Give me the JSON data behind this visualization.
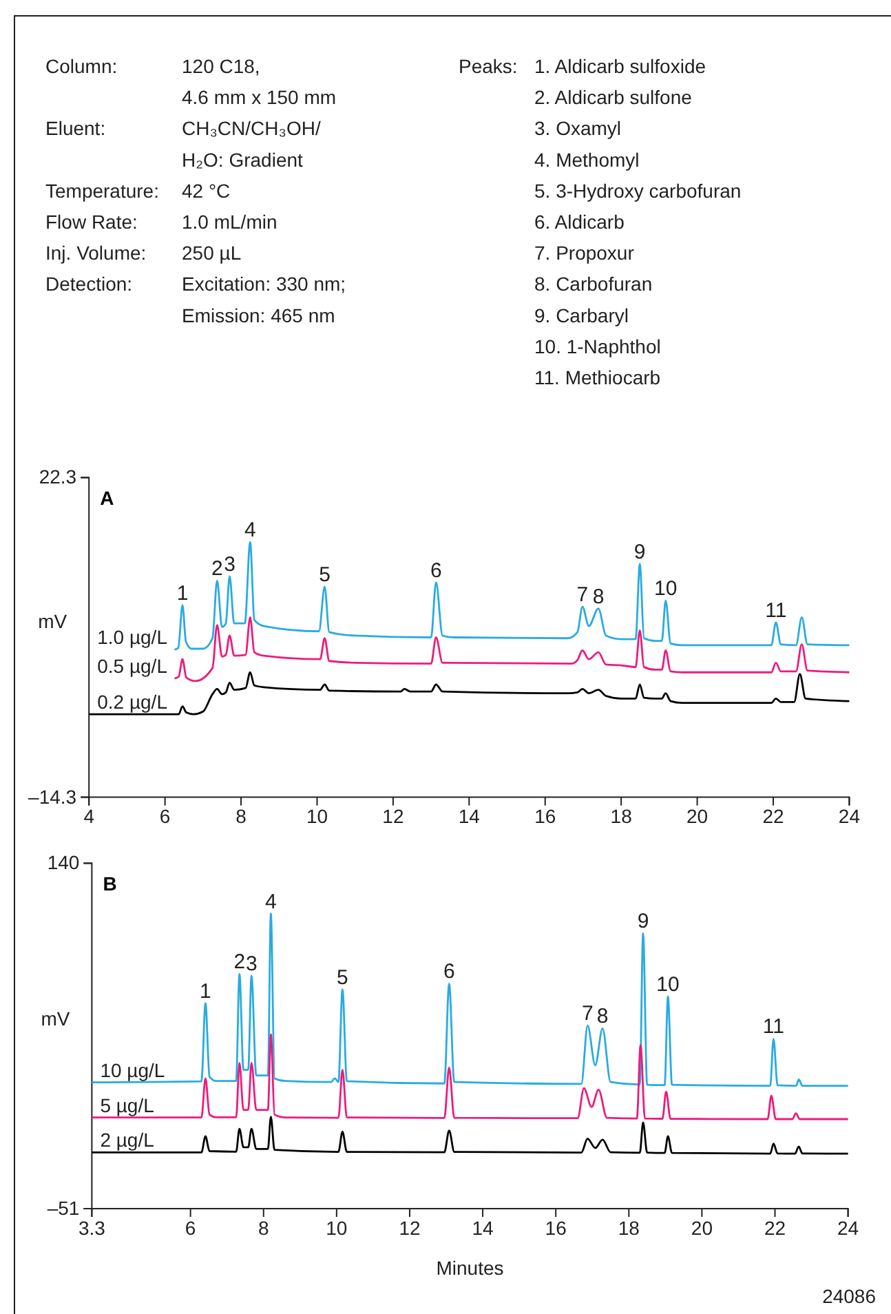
{
  "chart_data": [
    {
      "type": "other",
      "annotations": [
        "Column:\t120 C18,",
        "\t4.6 mm x 150 mm",
        "Eluent:\tCH₃CN/CH₃OH/",
        "\tH₂O: Gradient",
        "Temperature:\t42 °C",
        "Flow Rate:\t1.0 mL/min",
        "Inj. Volume:\t250 µL",
        "Detection:\tExcitation: 330 nm;",
        "\tEmission: 465 nm",
        "Peaks:\t\t1. Aldicarb sulfoxide",
        "\t\t2. Aldicarb sulfone",
        "\t\t3. Oxamyl",
        "\t\t4. Methomyl",
        "\t\t5. 3-Hydroxy carbofuran",
        "\t\t6. Aldicarb",
        "\t\t7. Propoxur",
        "\t\t8. Carbofuran",
        "\t\t9. Carbaryl",
        "\t\t10. 1-Naphthol",
        "\t\t11. Methiocarb"
      ]
    },
    {
      "type": "line",
      "title": "A",
      "ylabel": "mV",
      "xlim": [
        4,
        24
      ],
      "xticks": [
        4,
        6,
        8,
        10,
        12,
        14,
        16,
        18,
        20,
        22,
        24
      ],
      "ylim": [
        -14.3,
        22.3
      ],
      "yticks": [
        {
          "value": -14.3,
          "label": "–14.3"
        },
        22.3
      ],
      "series": [
        {
          "name": "1.0 µg/L",
          "color": "#29abe2",
          "x": [
            6.25,
            6.35,
            6.46,
            6.55,
            6.7,
            7.0,
            7.25,
            7.37,
            7.5,
            7.6,
            7.7,
            7.82,
            8.1,
            8.24,
            8.35,
            8.6,
            10.05,
            10.2,
            10.32,
            11,
            13.0,
            13.13,
            13.3,
            13.6,
            16.6,
            16.85,
            16.98,
            17.15,
            17.4,
            17.6,
            18.0,
            18.38,
            18.49,
            18.6,
            18.9,
            19.07,
            19.17,
            19.3,
            19.6,
            21.95,
            22.07,
            22.2,
            22.6,
            22.75,
            22.9,
            24
          ],
          "values": [
            2.6,
            2.8,
            7.7,
            3.5,
            2.7,
            2.7,
            3.9,
            10.5,
            5.2,
            5.6,
            11.0,
            5.6,
            5.6,
            14.9,
            6.0,
            5.3,
            4.7,
            9.8,
            4.6,
            4.2,
            4.0,
            10.3,
            4.2,
            4.0,
            3.9,
            4.6,
            7.5,
            5.3,
            7.3,
            4.2,
            3.8,
            3.8,
            12.4,
            3.9,
            3.6,
            3.6,
            8.2,
            3.3,
            3.1,
            3.1,
            5.7,
            3.2,
            3.1,
            6.3,
            3.2,
            3.1
          ]
        },
        {
          "name": "0.5 µg/L",
          "color": "#ec1c7c",
          "x": [
            6.25,
            6.36,
            6.46,
            6.56,
            6.8,
            7.25,
            7.37,
            7.5,
            7.6,
            7.7,
            7.82,
            8.12,
            8.24,
            8.35,
            8.6,
            10.08,
            10.2,
            10.32,
            11,
            13.0,
            13.13,
            13.3,
            16.7,
            16.85,
            16.98,
            17.15,
            17.4,
            17.6,
            18.0,
            18.38,
            18.49,
            18.6,
            18.9,
            19.07,
            19.17,
            19.3,
            19.6,
            21.95,
            22.07,
            22.2,
            22.6,
            22.75,
            22.9,
            24
          ],
          "values": [
            -0.7,
            -0.5,
            1.5,
            -0.6,
            -1.0,
            0.5,
            5.4,
            1.8,
            2.0,
            4.2,
            1.9,
            2.0,
            6.3,
            2.3,
            1.9,
            1.5,
            3.9,
            1.3,
            1.1,
            1.0,
            4.0,
            1.1,
            1.0,
            1.4,
            2.5,
            1.5,
            2.3,
            0.9,
            0.8,
            0.6,
            4.8,
            0.6,
            0.3,
            0.3,
            2.5,
            0.1,
            0.0,
            0.0,
            1.1,
            0.1,
            0.1,
            3.2,
            0.2,
            0.0
          ]
        },
        {
          "name": "0.2 µg/L",
          "color": "#000000",
          "x": [
            4,
            6.36,
            6.46,
            6.56,
            6.75,
            7.0,
            7.25,
            7.37,
            7.5,
            7.6,
            7.7,
            7.82,
            8.12,
            8.24,
            8.35,
            8.6,
            10.08,
            10.2,
            10.32,
            12.2,
            12.3,
            12.45,
            13.0,
            13.13,
            13.3,
            16.6,
            16.85,
            16.98,
            17.15,
            17.4,
            17.6,
            18.0,
            18.38,
            18.49,
            18.6,
            18.9,
            19.07,
            19.17,
            19.3,
            19.6,
            21.95,
            22.07,
            22.2,
            22.55,
            22.7,
            22.85,
            24
          ],
          "values": [
            -4.8,
            -4.8,
            -3.9,
            -4.6,
            -4.8,
            -4.5,
            -2.5,
            -1.9,
            -2.5,
            -2.3,
            -1.2,
            -2.0,
            -1.8,
            0.0,
            -1.5,
            -1.7,
            -2.0,
            -1.4,
            -2.1,
            -2.2,
            -1.9,
            -2.2,
            -2.2,
            -1.4,
            -2.2,
            -2.4,
            -2.3,
            -1.9,
            -2.4,
            -2.0,
            -2.7,
            -3.0,
            -3.0,
            -1.4,
            -2.9,
            -3.0,
            -3.0,
            -2.4,
            -3.3,
            -3.5,
            -3.5,
            -3.0,
            -3.4,
            -3.4,
            -0.2,
            -3.0,
            -3.3
          ]
        }
      ],
      "annotations": [
        {
          "text": "1",
          "x": 6.46,
          "y": 7.7
        },
        {
          "text": "2",
          "x": 7.37,
          "y": 10.5
        },
        {
          "text": "3",
          "x": 7.7,
          "y": 11.0
        },
        {
          "text": "4",
          "x": 8.24,
          "y": 14.9
        },
        {
          "text": "5",
          "x": 10.2,
          "y": 9.8
        },
        {
          "text": "6",
          "x": 13.13,
          "y": 10.3
        },
        {
          "text": "7",
          "x": 16.98,
          "y": 7.5
        },
        {
          "text": "8",
          "x": 17.4,
          "y": 7.3
        },
        {
          "text": "9",
          "x": 18.49,
          "y": 12.4
        },
        {
          "text": "10",
          "x": 19.17,
          "y": 8.2
        },
        {
          "text": "11",
          "x": 22.07,
          "y": 5.7
        }
      ]
    },
    {
      "type": "line",
      "title": "B",
      "ylabel": "mV",
      "xlabel": "Minutes",
      "xlim": [
        3.3,
        24
      ],
      "xticks": [
        3.3,
        6,
        8,
        10,
        12,
        14,
        16,
        18,
        20,
        22,
        24
      ],
      "ylim": [
        -51,
        140
      ],
      "yticks": [
        {
          "value": -51,
          "label": "–51"
        },
        140
      ],
      "series": [
        {
          "name": "10 µg/L",
          "color": "#29abe2",
          "x": [
            3.3,
            6.3,
            6.41,
            6.52,
            6.7,
            7.25,
            7.34,
            7.45,
            7.58,
            7.67,
            7.8,
            8.12,
            8.2,
            8.3,
            8.6,
            9.85,
            9.95,
            10.05,
            10.16,
            10.28,
            12.95,
            13.08,
            13.22,
            16.7,
            16.87,
            17.08,
            17.28,
            17.5,
            18.3,
            18.39,
            18.5,
            18.98,
            19.07,
            19.18,
            21.87,
            21.96,
            22.07,
            22.58,
            22.65,
            22.75,
            24
          ],
          "values": [
            18.8,
            19.4,
            62.6,
            22,
            19.6,
            19.6,
            78.8,
            25.8,
            25.8,
            77.8,
            22.6,
            22.6,
            112.1,
            21,
            19.6,
            19.0,
            21,
            19,
            70.2,
            19.5,
            18.2,
            73.4,
            19,
            18.0,
            50.2,
            28.3,
            48.6,
            19,
            17.6,
            101.3,
            17.5,
            17.3,
            66.4,
            17.5,
            16.9,
            42.9,
            17.2,
            16.9,
            20.4,
            16.9,
            16.9
          ]
        },
        {
          "name": "5 µg/L",
          "color": "#ec1c7c",
          "x": [
            3.3,
            6.3,
            6.41,
            6.52,
            6.7,
            7.25,
            7.34,
            7.45,
            7.58,
            7.67,
            7.8,
            8.12,
            8.2,
            8.3,
            8.6,
            10.05,
            10.16,
            10.28,
            12.95,
            13.08,
            13.22,
            16.6,
            16.77,
            16.98,
            17.17,
            17.4,
            18.22,
            18.32,
            18.44,
            18.92,
            19.02,
            19.14,
            21.8,
            21.9,
            22.02,
            22.48,
            22.57,
            22.68,
            24
          ],
          "values": [
            -0.6,
            -0.6,
            21.0,
            1,
            -0.5,
            -0.5,
            29.6,
            3.6,
            3.6,
            29.6,
            3.6,
            3.6,
            45.4,
            1,
            -0.6,
            -0.8,
            25.8,
            -0.6,
            -0.9,
            27.0,
            -0.8,
            -1.0,
            15.6,
            5.2,
            14.7,
            -0.8,
            -1.2,
            39.4,
            -1.2,
            -1.3,
            13.7,
            -1.3,
            -1.5,
            11.5,
            -1.5,
            -1.5,
            1.7,
            -1.5,
            -1.5
          ]
        },
        {
          "name": "2 µg/L",
          "color": "#000000",
          "x": [
            3.3,
            6.3,
            6.41,
            6.52,
            7.25,
            7.34,
            7.45,
            7.58,
            7.67,
            7.8,
            8.12,
            8.2,
            8.3,
            10.05,
            10.16,
            10.28,
            12.95,
            13.08,
            13.22,
            16.7,
            16.87,
            17.08,
            17.28,
            17.5,
            18.3,
            18.39,
            18.5,
            18.98,
            19.07,
            19.18,
            21.87,
            21.96,
            22.07,
            22.55,
            22.65,
            22.75,
            24
          ],
          "values": [
            -19.9,
            -19.9,
            -11.0,
            -19.2,
            -19.5,
            -6.9,
            -17.1,
            -17.1,
            -6.9,
            -18,
            -18,
            -0.2,
            -18.5,
            -19.6,
            -8.5,
            -19.6,
            -19.8,
            -7.8,
            -19.6,
            -20.0,
            -12.3,
            -17.5,
            -12.9,
            -19.8,
            -20.1,
            -3.4,
            -20.0,
            -20.2,
            -11.0,
            -20.2,
            -20.6,
            -15.1,
            -20.5,
            -20.6,
            -16.7,
            -20.5,
            -20.6
          ]
        }
      ],
      "annotations": [
        {
          "text": "1",
          "x": 6.41,
          "y": 62.6
        },
        {
          "text": "2",
          "x": 7.34,
          "y": 78.8
        },
        {
          "text": "3",
          "x": 7.67,
          "y": 77.8
        },
        {
          "text": "4",
          "x": 8.2,
          "y": 112.1
        },
        {
          "text": "5",
          "x": 10.16,
          "y": 70.2
        },
        {
          "text": "6",
          "x": 13.08,
          "y": 73.4
        },
        {
          "text": "7",
          "x": 16.87,
          "y": 50.2
        },
        {
          "text": "8",
          "x": 17.28,
          "y": 48.6
        },
        {
          "text": "9",
          "x": 18.39,
          "y": 101.3
        },
        {
          "text": "10",
          "x": 19.07,
          "y": 66.4
        },
        {
          "text": "11",
          "x": 21.96,
          "y": 42.9
        },
        "24086"
      ]
    }
  ]
}
